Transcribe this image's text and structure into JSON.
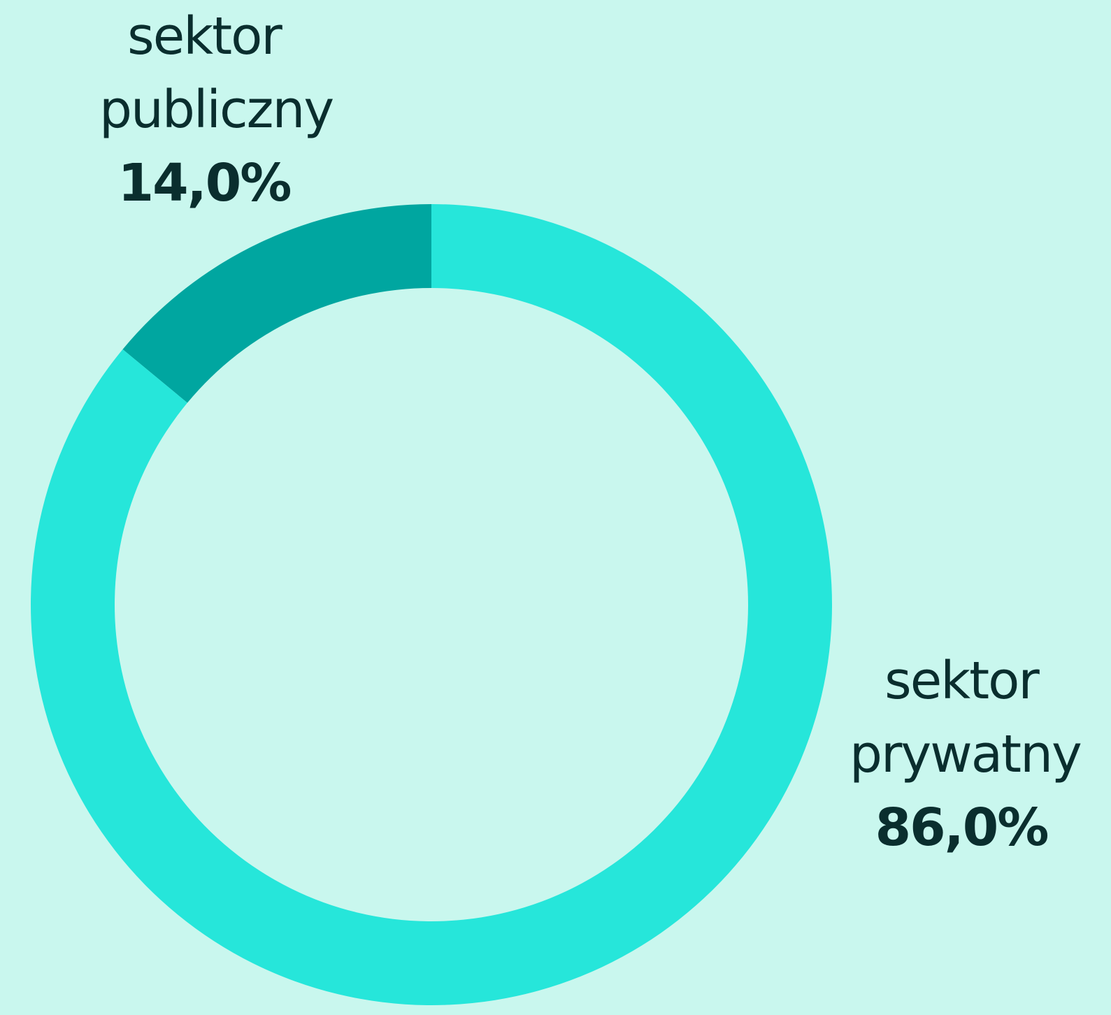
{
  "chart_data": {
    "type": "donut",
    "categories": [
      "sektor publiczny",
      "sektor prywatny"
    ],
    "values": [
      14,
      86
    ],
    "value_labels": [
      "14,0%",
      "86,0%"
    ],
    "colors": [
      "#00a6a0",
      "#26e6da"
    ]
  }
}
